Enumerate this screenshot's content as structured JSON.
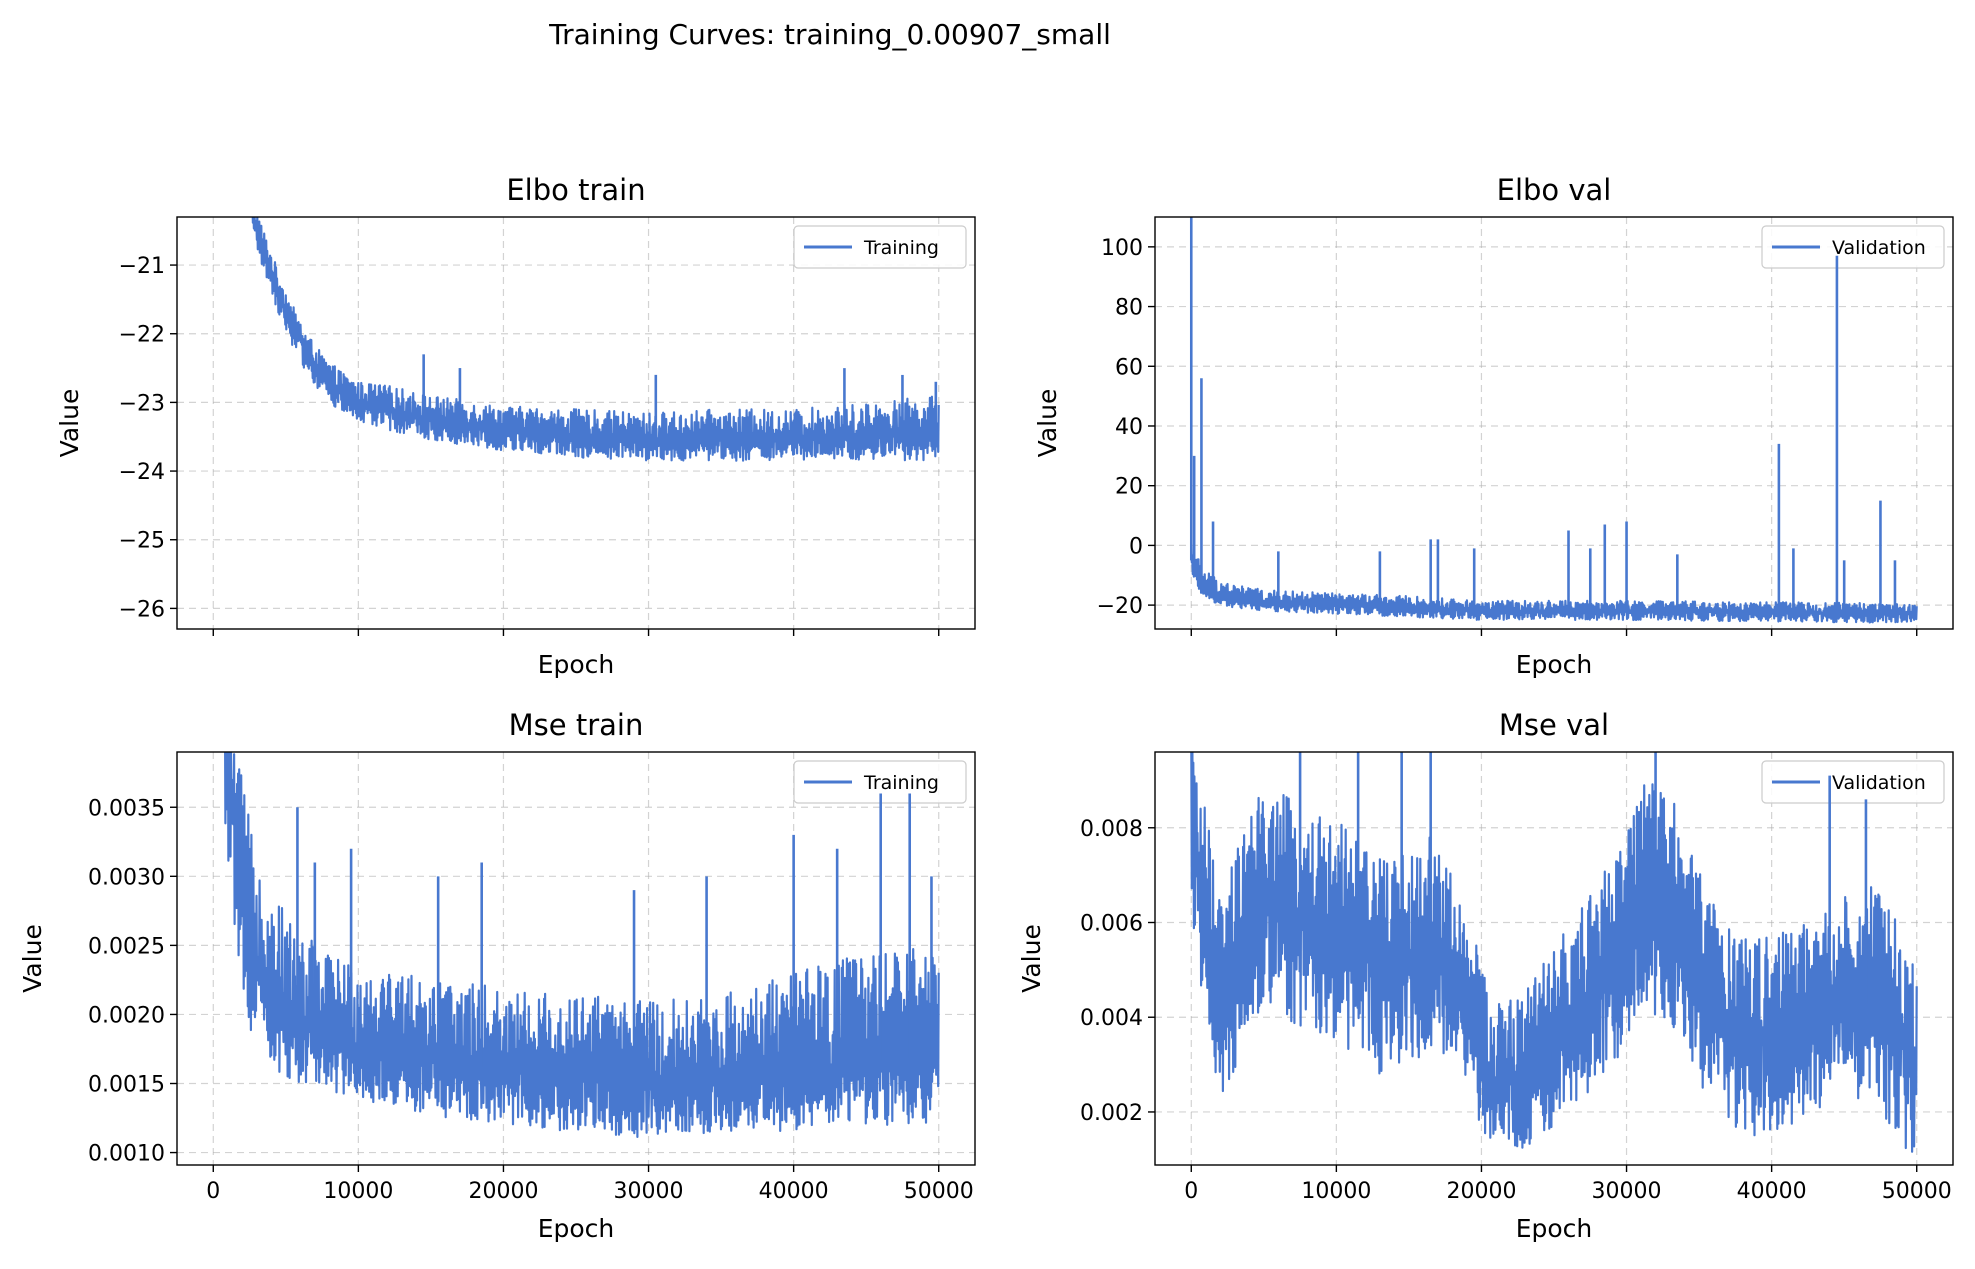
{
  "figure": {
    "title": "Training Curves: training_0.00907_small"
  },
  "colors": {
    "series": "#4878cf"
  },
  "chart_data": [
    {
      "id": "elbo-train",
      "type": "line",
      "title": "Elbo train",
      "xlabel": "Epoch",
      "ylabel": "Value",
      "xlim": [
        -2500,
        52500
      ],
      "ylim": [
        -26.3,
        -20.3
      ],
      "xticks": [
        0,
        10000,
        20000,
        30000,
        40000,
        50000
      ],
      "xticklabels_visible": false,
      "yticks": [
        -21,
        -22,
        -23,
        -24,
        -25,
        -26
      ],
      "yticklabels": [
        "−21",
        "−22",
        "−23",
        "−24",
        "−25",
        "−26"
      ],
      "grid": true,
      "legend": "upper right",
      "series": [
        {
          "name": "Training",
          "x": [
            2700,
            3500,
            4500,
            5500,
            6500,
            7500,
            8500,
            10000,
            12000,
            15000,
            20000,
            25000,
            30000,
            35000,
            40000,
            45000,
            50000
          ],
          "y": [
            -20.3,
            -20.8,
            -21.4,
            -21.9,
            -22.3,
            -22.6,
            -22.8,
            -23.0,
            -23.1,
            -23.25,
            -23.4,
            -23.5,
            -23.55,
            -23.55,
            -23.55,
            -23.5,
            -23.45
          ],
          "noise_low": [
            0.3,
            0.3,
            0.3,
            0.3,
            0.3,
            0.3,
            0.3,
            0.3,
            0.3,
            0.3,
            0.3,
            0.3,
            0.3,
            0.3,
            0.3,
            0.35,
            0.4
          ],
          "noise_high": [
            0.3,
            0.3,
            0.3,
            0.3,
            0.3,
            0.3,
            0.3,
            0.3,
            0.35,
            0.35,
            0.35,
            0.4,
            0.4,
            0.45,
            0.45,
            0.5,
            0.55
          ],
          "spikes": [
            [
              14500,
              -22.3
            ],
            [
              17000,
              -22.5
            ],
            [
              30500,
              -22.6
            ],
            [
              43500,
              -22.5
            ],
            [
              47500,
              -22.6
            ],
            [
              49800,
              -22.7
            ]
          ]
        }
      ]
    },
    {
      "id": "elbo-val",
      "type": "line",
      "title": "Elbo val",
      "xlabel": "Epoch",
      "ylabel": "Value",
      "xlim": [
        -2500,
        52500
      ],
      "ylim": [
        -28,
        110
      ],
      "xticks": [
        0,
        10000,
        20000,
        30000,
        40000,
        50000
      ],
      "xticklabels_visible": false,
      "yticks": [
        100,
        80,
        60,
        40,
        20,
        0,
        -20
      ],
      "yticklabels": [
        "100",
        "80",
        "60",
        "40",
        "20",
        "0",
        "−20"
      ],
      "grid": true,
      "legend": "upper right",
      "series": [
        {
          "name": "Validation",
          "x": [
            0,
            300,
            800,
            1500,
            3000,
            5000,
            10000,
            15000,
            20000,
            30000,
            40000,
            50000
          ],
          "y": [
            -5,
            -10,
            -14,
            -16,
            -18,
            -19,
            -20,
            -21,
            -22,
            -22,
            -22.5,
            -23
          ],
          "noise_low": [
            3,
            3,
            3,
            3,
            3,
            3,
            3,
            3,
            3,
            3,
            3,
            3
          ],
          "noise_high": [
            10,
            8,
            7,
            6,
            5,
            4,
            4,
            4,
            3.5,
            3.5,
            3.5,
            3.5
          ],
          "spikes": [
            [
              0,
              110
            ],
            [
              200,
              30
            ],
            [
              700,
              56
            ],
            [
              1500,
              8
            ],
            [
              6000,
              -2
            ],
            [
              13000,
              -2
            ],
            [
              16500,
              2
            ],
            [
              17000,
              2
            ],
            [
              19500,
              -1
            ],
            [
              26000,
              5
            ],
            [
              27500,
              -1
            ],
            [
              28500,
              7
            ],
            [
              30000,
              8
            ],
            [
              33500,
              -3
            ],
            [
              40500,
              34
            ],
            [
              41500,
              -1
            ],
            [
              44500,
              97
            ],
            [
              45000,
              -5
            ],
            [
              47500,
              15
            ],
            [
              48500,
              -5
            ]
          ]
        }
      ]
    },
    {
      "id": "mse-train",
      "type": "line",
      "title": "Mse train",
      "xlabel": "Epoch",
      "ylabel": "Value",
      "xlim": [
        -2500,
        52500
      ],
      "ylim": [
        0.00091,
        0.0039
      ],
      "xticks": [
        0,
        10000,
        20000,
        30000,
        40000,
        50000
      ],
      "xticklabels": [
        "0",
        "10000",
        "20000",
        "30000",
        "40000",
        "50000"
      ],
      "yticks": [
        0.001,
        0.0015,
        0.002,
        0.0025,
        0.003,
        0.0035
      ],
      "yticklabels": [
        "0.0010",
        "0.0015",
        "0.0020",
        "0.0025",
        "0.0030",
        "0.0035"
      ],
      "grid": true,
      "legend": "upper right",
      "series": [
        {
          "name": "Training",
          "x": [
            800,
            1500,
            2500,
            4000,
            6000,
            9000,
            12000,
            16000,
            20000,
            25000,
            30000,
            35000,
            40000,
            45000,
            50000
          ],
          "y": [
            0.0039,
            0.0033,
            0.0026,
            0.0021,
            0.0019,
            0.0018,
            0.00175,
            0.00165,
            0.0016,
            0.00155,
            0.0015,
            0.00155,
            0.0016,
            0.00165,
            0.0017
          ],
          "noise_low": [
            0.0006,
            0.0007,
            0.0007,
            0.0005,
            0.0004,
            0.0004,
            0.0004,
            0.0004,
            0.0004,
            0.0004,
            0.0004,
            0.0004,
            0.00045,
            0.00045,
            0.0005
          ],
          "noise_high": [
            0.0006,
            0.0007,
            0.0008,
            0.0008,
            0.0007,
            0.0006,
            0.0006,
            0.0006,
            0.0006,
            0.0006,
            0.0006,
            0.0006,
            0.0007,
            0.0008,
            0.0008
          ],
          "spikes": [
            [
              5800,
              0.0035
            ],
            [
              7000,
              0.0031
            ],
            [
              9500,
              0.0032
            ],
            [
              15500,
              0.003
            ],
            [
              18500,
              0.0031
            ],
            [
              29000,
              0.0029
            ],
            [
              34000,
              0.003
            ],
            [
              40000,
              0.0033
            ],
            [
              43000,
              0.0032
            ],
            [
              46000,
              0.0036
            ],
            [
              48000,
              0.0036
            ],
            [
              49500,
              0.003
            ]
          ]
        }
      ]
    },
    {
      "id": "mse-val",
      "type": "line",
      "title": "Mse val",
      "xlabel": "Epoch",
      "ylabel": "Value",
      "xlim": [
        -2500,
        52500
      ],
      "ylim": [
        0.00088,
        0.0096
      ],
      "xticks": [
        0,
        10000,
        20000,
        30000,
        40000,
        50000
      ],
      "xticklabels": [
        "0",
        "10000",
        "20000",
        "30000",
        "40000",
        "50000"
      ],
      "yticks": [
        0.002,
        0.004,
        0.006,
        0.008
      ],
      "yticklabels": [
        "0.002",
        "0.004",
        "0.006",
        "0.008"
      ],
      "grid": true,
      "legend": "upper right",
      "series": [
        {
          "name": "Validation",
          "x": [
            0,
            1000,
            2000,
            3500,
            5000,
            7000,
            9000,
            11000,
            13000,
            15000,
            17000,
            19000,
            21000,
            23000,
            25000,
            27000,
            29000,
            31000,
            33000,
            35000,
            37000,
            39000,
            41000,
            43000,
            45000,
            47000,
            49000,
            50000
          ],
          "y": [
            0.008,
            0.006,
            0.004,
            0.0055,
            0.0065,
            0.006,
            0.0058,
            0.0055,
            0.005,
            0.0052,
            0.0055,
            0.004,
            0.0025,
            0.0028,
            0.0035,
            0.0042,
            0.005,
            0.0065,
            0.0062,
            0.0048,
            0.0038,
            0.0035,
            0.0036,
            0.004,
            0.0042,
            0.0043,
            0.0035,
            0.003
          ],
          "noise_low": [
            0.002,
            0.002,
            0.002,
            0.0022,
            0.0022,
            0.0022,
            0.0022,
            0.0022,
            0.0022,
            0.0022,
            0.0022,
            0.0018,
            0.0014,
            0.0016,
            0.0018,
            0.002,
            0.0022,
            0.0024,
            0.0024,
            0.0022,
            0.0022,
            0.002,
            0.002,
            0.002,
            0.002,
            0.002,
            0.0022,
            0.002
          ],
          "noise_high": [
            0.0022,
            0.0024,
            0.0024,
            0.0024,
            0.0025,
            0.0026,
            0.0026,
            0.0024,
            0.0024,
            0.0024,
            0.0024,
            0.0022,
            0.0018,
            0.0018,
            0.002,
            0.0022,
            0.0024,
            0.0026,
            0.0026,
            0.0024,
            0.0022,
            0.0022,
            0.0022,
            0.0022,
            0.0024,
            0.0026,
            0.0024,
            0.0022
          ],
          "spikes": [
            [
              7500,
              0.0096
            ],
            [
              11500,
              0.0096
            ],
            [
              14500,
              0.0096
            ],
            [
              16500,
              0.0096
            ],
            [
              32000,
              0.0096
            ],
            [
              44000,
              0.0091
            ],
            [
              46500,
              0.0086
            ]
          ]
        }
      ]
    }
  ]
}
